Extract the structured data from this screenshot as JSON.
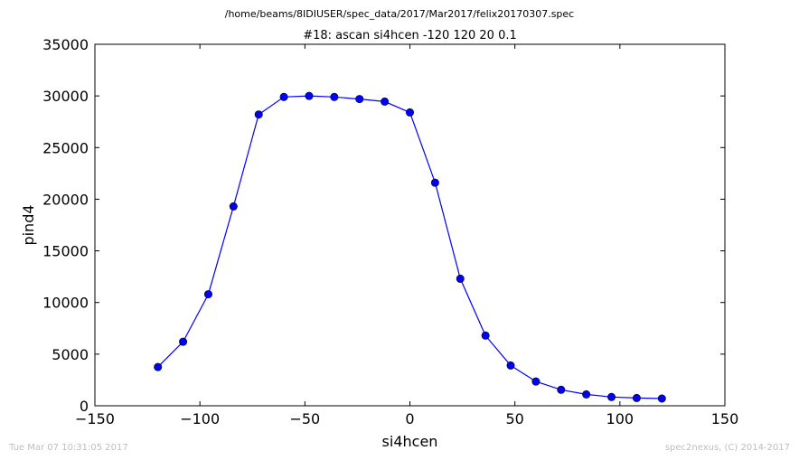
{
  "chart_data": {
    "type": "line",
    "suptitle": "/home/beams/8IDIUSER/spec_data/2017/Mar2017/felix20170307.spec",
    "title": "#18: ascan  si4hcen -120 120  20 0.1",
    "xlabel": "si4hcen",
    "ylabel": "pind4",
    "xlim": [
      -150,
      150
    ],
    "ylim": [
      0,
      35000
    ],
    "x_ticks": [
      -150,
      -100,
      -50,
      0,
      50,
      100,
      150
    ],
    "x_tick_labels": [
      "−150",
      "−100",
      "−50",
      "0",
      "50",
      "100",
      "150"
    ],
    "y_ticks": [
      0,
      5000,
      10000,
      15000,
      20000,
      25000,
      30000,
      35000
    ],
    "y_tick_labels": [
      "0",
      "5000",
      "10000",
      "15000",
      "20000",
      "25000",
      "30000",
      "35000"
    ],
    "grid": false,
    "series": [
      {
        "color": "#0000ff",
        "x": [
          -120,
          -108,
          -96,
          -84,
          -72,
          -60,
          -48,
          -36,
          -24,
          -12,
          0,
          12,
          24,
          36,
          48,
          60,
          72,
          84,
          96,
          108,
          120
        ],
        "y": [
          3750,
          6200,
          10800,
          19300,
          28200,
          29900,
          30000,
          29900,
          29700,
          29450,
          28400,
          21600,
          12300,
          6800,
          3900,
          2350,
          1550,
          1100,
          850,
          750,
          700
        ]
      }
    ]
  },
  "footer": {
    "timestamp": "Tue Mar 07 10:31:05 2017",
    "credit": "spec2nexus, (C) 2014-2017"
  }
}
